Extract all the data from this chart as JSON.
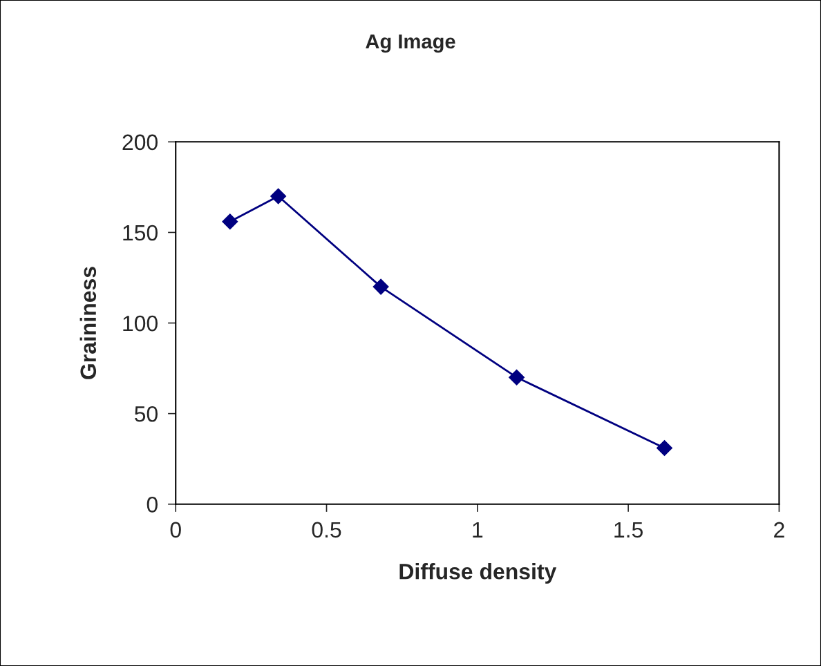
{
  "chart_data": {
    "type": "line",
    "title": "Ag Image",
    "xlabel": "Diffuse density",
    "ylabel": "Graininess",
    "x": [
      0.18,
      0.34,
      0.68,
      1.13,
      1.62
    ],
    "series": [
      {
        "color": "#000080",
        "values": [
          156,
          170,
          120,
          70,
          31
        ]
      }
    ],
    "xlim": [
      0,
      2
    ],
    "xticks": [
      0,
      0.5,
      1,
      1.5,
      2
    ],
    "ylim": [
      0,
      200
    ],
    "yticks": [
      0,
      50,
      100,
      150,
      200
    ],
    "grid": false,
    "legend": false,
    "marker": "diamond",
    "line_style": "solid"
  }
}
